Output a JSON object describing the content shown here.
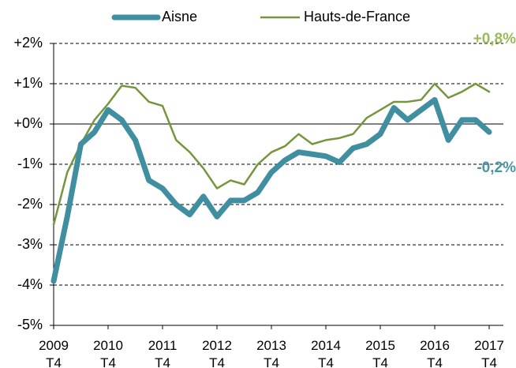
{
  "chart_data": {
    "type": "line",
    "categories": [
      "2009\nT4",
      null,
      null,
      null,
      "2010\nT4",
      null,
      null,
      null,
      "2011\nT4",
      null,
      null,
      null,
      "2012\nT4",
      null,
      null,
      null,
      "2013\nT4",
      null,
      null,
      null,
      "2014\nT4",
      null,
      null,
      null,
      "2015\nT4",
      null,
      null,
      null,
      "2016\nT4",
      null,
      null,
      null,
      "2017\nT4"
    ],
    "series": [
      {
        "name": "Aisne",
        "color": "#3f8fa0",
        "label_color": "#4a96a8",
        "values": [
          -3.9,
          -2.3,
          -0.5,
          -0.2,
          0.35,
          0.1,
          -0.4,
          -1.4,
          -1.6,
          -2.0,
          -2.25,
          -1.8,
          -2.3,
          -1.9,
          -1.9,
          -1.7,
          -1.2,
          -0.9,
          -0.7,
          -0.75,
          -0.8,
          -0.95,
          -0.6,
          -0.5,
          -0.25,
          0.4,
          0.1,
          0.35,
          0.6,
          -0.4,
          0.1,
          0.1,
          -0.2
        ],
        "value_labels": [
          null,
          null,
          null,
          null,
          null,
          null,
          null,
          null,
          null,
          null,
          null,
          null,
          null,
          null,
          null,
          null,
          null,
          null,
          null,
          null,
          null,
          null,
          null,
          null,
          null,
          null,
          null,
          null,
          null,
          null,
          null,
          null,
          "-0,2%"
        ]
      },
      {
        "name": "Hauts-de-France",
        "color": "#76963e",
        "label_color": "#9bbb59",
        "values": [
          -2.5,
          -1.2,
          -0.5,
          0.1,
          0.5,
          0.95,
          0.9,
          0.55,
          0.45,
          -0.4,
          -0.7,
          -1.1,
          -1.6,
          -1.4,
          -1.5,
          -1.0,
          -0.7,
          -0.55,
          -0.25,
          -0.5,
          -0.4,
          -0.35,
          -0.25,
          0.15,
          0.35,
          0.55,
          0.55,
          0.6,
          1.0,
          0.65,
          0.8,
          1.0,
          0.8
        ],
        "value_labels": [
          null,
          null,
          null,
          null,
          null,
          null,
          null,
          null,
          null,
          null,
          null,
          null,
          null,
          null,
          null,
          null,
          null,
          null,
          null,
          null,
          null,
          null,
          null,
          null,
          null,
          null,
          null,
          null,
          null,
          null,
          null,
          null,
          "+0,8%"
        ]
      }
    ],
    "ylim": [
      -5,
      2
    ],
    "yticks": [
      {
        "value": 2,
        "label": "+2%"
      },
      {
        "value": 1,
        "label": "+1%"
      },
      {
        "value": 0,
        "label": "+0%"
      },
      {
        "value": -1,
        "label": "-1%"
      },
      {
        "value": -2,
        "label": "-2%"
      },
      {
        "value": -3,
        "label": "-3%"
      },
      {
        "value": -4,
        "label": "-4%"
      },
      {
        "value": -5,
        "label": "-5%"
      }
    ],
    "grid": true,
    "legend": "top"
  }
}
